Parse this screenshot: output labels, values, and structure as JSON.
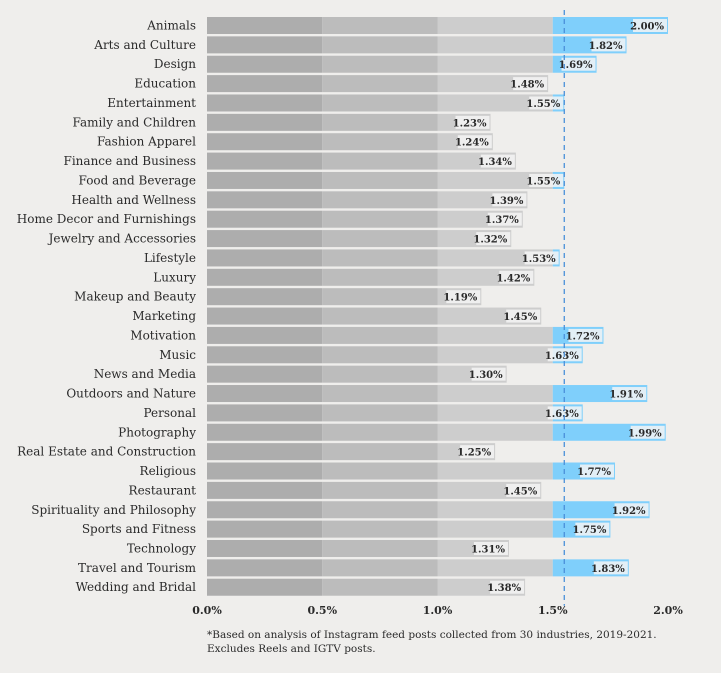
{
  "colors": {
    "background": "#efeeec",
    "band_1": "#adadad",
    "band_2": "#bcbcbc",
    "band_3": "#cdcdcd",
    "highlight": "#7fcffb",
    "reference_line": "#4a90d9",
    "label_bg": "#f4f4f4",
    "text": "#2a2a2a"
  },
  "footnote": {
    "line1": "*Based on analysis of Instagram feed posts collected from 30 industries, 2019-2021.",
    "line2": "Excludes Reels and IGTV posts."
  },
  "chart_data": {
    "type": "bar",
    "orientation": "horizontal",
    "categories": [
      "Animals",
      "Arts and Culture",
      "Design",
      "Education",
      "Entertainment",
      "Family and Children",
      "Fashion Apparel",
      "Finance and Business",
      "Food and Beverage",
      "Health and Wellness",
      "Home Decor and Furnishings",
      "Jewelry and Accessories",
      "Lifestyle",
      "Luxury",
      "Makeup and Beauty",
      "Marketing",
      "Motivation",
      "Music",
      "News and Media",
      "Outdoors and Nature",
      "Personal",
      "Photography",
      "Real Estate and Construction",
      "Religious",
      "Restaurant",
      "Spirituality and Philosophy",
      "Sports and Fitness",
      "Technology",
      "Travel and Tourism",
      "Wedding and Bridal"
    ],
    "values": [
      2.0,
      1.82,
      1.69,
      1.48,
      1.55,
      1.23,
      1.24,
      1.34,
      1.55,
      1.39,
      1.37,
      1.32,
      1.53,
      1.42,
      1.19,
      1.45,
      1.72,
      1.63,
      1.3,
      1.91,
      1.63,
      1.99,
      1.25,
      1.77,
      1.45,
      1.92,
      1.75,
      1.31,
      1.83,
      1.38
    ],
    "value_labels": [
      "2.00%",
      "1.82%",
      "1.69%",
      "1.48%",
      "1.55%",
      "1.23%",
      "1.24%",
      "1.34%",
      "1.55%",
      "1.39%",
      "1.37%",
      "1.32%",
      "1.53%",
      "1.42%",
      "1.19%",
      "1.45%",
      "1.72%",
      "1.63%",
      "1.30%",
      "1.91%",
      "1.63%",
      "1.99%",
      "1.25%",
      "1.77%",
      "1.45%",
      "1.92%",
      "1.75%",
      "1.31%",
      "1.83%",
      "1.38%"
    ],
    "xlim": [
      0,
      2.0
    ],
    "x_ticks": [
      0,
      0.5,
      1.0,
      1.5,
      2.0
    ],
    "x_tick_labels": [
      "0.0%",
      "0.5%",
      "1.0%",
      "1.5%",
      "2.0%"
    ],
    "reference_value": 1.55,
    "highlight_threshold": 1.5,
    "grid": false,
    "legend": "none"
  }
}
